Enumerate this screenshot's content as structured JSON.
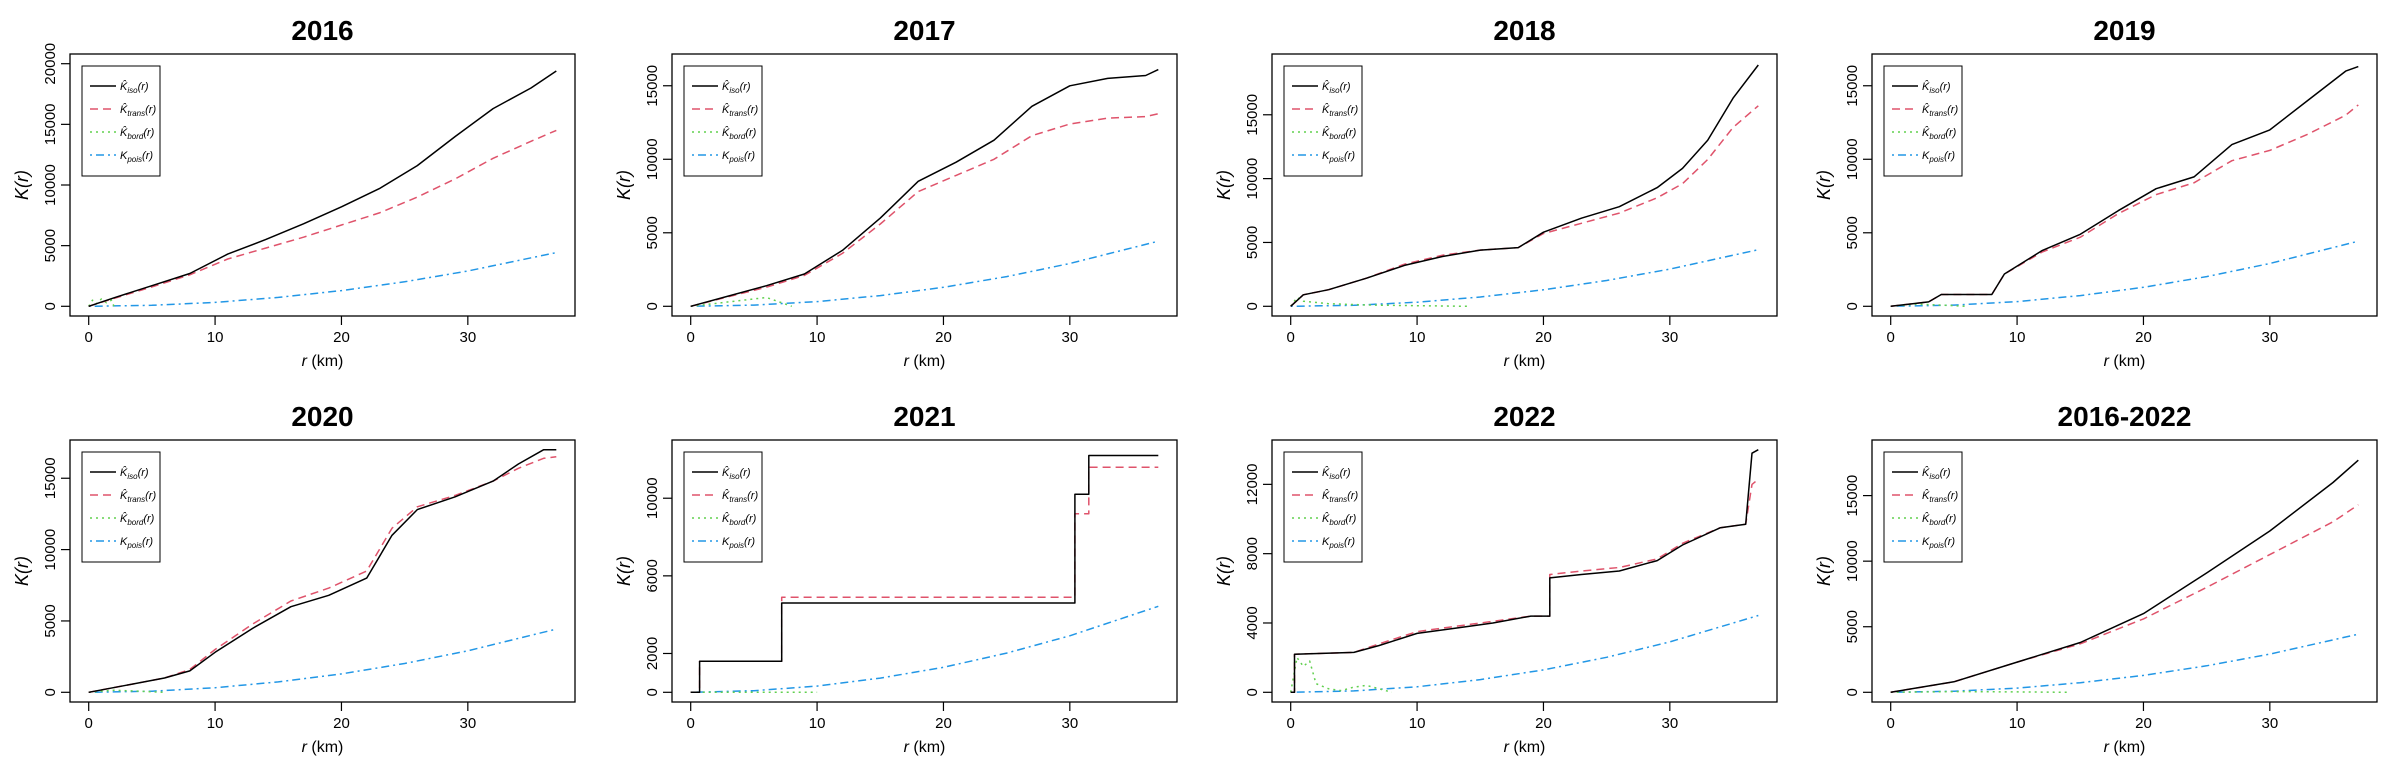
{
  "figure": {
    "legend_entries": [
      {
        "name": "K̂iso(r)",
        "base": "K̂",
        "sub": "iso",
        "color": "#000000",
        "dash": ""
      },
      {
        "name": "K̂trans(r)",
        "base": "K̂",
        "sub": "trans",
        "color": "#DF536B",
        "dash": "8,5"
      },
      {
        "name": "K̂bord(r)",
        "base": "K̂",
        "sub": "bord",
        "color": "#61D04F",
        "dash": "2,4"
      },
      {
        "name": "Kpois(r)",
        "base": "K",
        "sub": "pois",
        "color": "#2297E6",
        "dash": "2,4,8,4"
      }
    ]
  },
  "chart_data": [
    {
      "type": "line",
      "title": "2016",
      "xlabel": "r (km)",
      "ylabel": "K(r)",
      "xlim": [
        0,
        37
      ],
      "ylim": [
        0,
        20000
      ],
      "xticks": [
        0,
        10,
        20,
        30
      ],
      "yticks": [
        0,
        5000,
        10000,
        15000,
        20000
      ],
      "legend_position": "top-left",
      "series": [
        {
          "name": "K̂iso(r)",
          "x": [
            0,
            2,
            5,
            8,
            11,
            14,
            17,
            20,
            23,
            26,
            29,
            32,
            35,
            37
          ],
          "y": [
            0,
            700,
            1700,
            2700,
            4300,
            5500,
            6800,
            8200,
            9700,
            11600,
            14000,
            16300,
            18000,
            19400
          ]
        },
        {
          "name": "K̂trans(r)",
          "x": [
            0,
            2,
            5,
            8,
            11,
            14,
            17,
            20,
            23,
            26,
            29,
            32,
            35,
            37
          ],
          "y": [
            0,
            650,
            1600,
            2600,
            3900,
            4800,
            5700,
            6700,
            7700,
            9000,
            10500,
            12200,
            13600,
            14500
          ]
        },
        {
          "name": "K̂bord(r)",
          "x": [
            0,
            0.3,
            0.6,
            1,
            1.4,
            1.8,
            2
          ],
          "y": [
            0,
            500,
            200,
            600,
            300,
            500,
            0
          ]
        },
        {
          "name": "Kpois(r)",
          "x": [
            0,
            5,
            10,
            15,
            20,
            25,
            30,
            37
          ],
          "y": [
            0,
            80,
            320,
            730,
            1290,
            2020,
            2910,
            4430
          ]
        }
      ]
    },
    {
      "type": "line",
      "title": "2017",
      "xlabel": "r (km)",
      "ylabel": "K(r)",
      "xlim": [
        0,
        37
      ],
      "ylim": [
        0,
        16500
      ],
      "xticks": [
        0,
        10,
        20,
        30
      ],
      "yticks": [
        0,
        5000,
        10000,
        15000
      ],
      "legend_position": "top-left",
      "series": [
        {
          "name": "K̂iso(r)",
          "x": [
            0,
            3,
            6,
            9,
            12,
            15,
            18,
            21,
            24,
            27,
            30,
            33,
            36,
            37
          ],
          "y": [
            0,
            700,
            1400,
            2200,
            3800,
            6000,
            8500,
            9800,
            11300,
            13600,
            15000,
            15500,
            15700,
            16100
          ]
        },
        {
          "name": "K̂trans(r)",
          "x": [
            0,
            3,
            6,
            9,
            12,
            15,
            18,
            21,
            24,
            27,
            30,
            33,
            36,
            37
          ],
          "y": [
            0,
            650,
            1300,
            2100,
            3600,
            5600,
            7800,
            8900,
            10000,
            11600,
            12400,
            12800,
            12900,
            13100
          ]
        },
        {
          "name": "K̂bord(r)",
          "x": [
            0,
            2,
            4,
            6,
            7,
            8
          ],
          "y": [
            0,
            200,
            400,
            600,
            300,
            0
          ]
        },
        {
          "name": "Kpois(r)",
          "x": [
            0,
            5,
            10,
            15,
            20,
            25,
            30,
            37
          ],
          "y": [
            0,
            80,
            320,
            730,
            1290,
            2020,
            2910,
            4430
          ]
        }
      ]
    },
    {
      "type": "line",
      "title": "2018",
      "xlabel": "r (km)",
      "ylabel": "K(r)",
      "xlim": [
        0,
        37
      ],
      "ylim": [
        0,
        19000
      ],
      "xticks": [
        0,
        10,
        20,
        30
      ],
      "yticks": [
        0,
        5000,
        10000,
        15000
      ],
      "legend_position": "top-left",
      "series": [
        {
          "name": "K̂iso(r)",
          "x": [
            0,
            1,
            3,
            6,
            9,
            12,
            15,
            18,
            20,
            23,
            26,
            29,
            31,
            33,
            35,
            37
          ],
          "y": [
            0,
            900,
            1300,
            2200,
            3200,
            3900,
            4400,
            4600,
            5800,
            6900,
            7800,
            9300,
            10800,
            13000,
            16300,
            18900
          ]
        },
        {
          "name": "K̂trans(r)",
          "x": [
            0,
            1,
            3,
            6,
            9,
            12,
            15,
            18,
            20,
            23,
            26,
            29,
            31,
            33,
            35,
            37
          ],
          "y": [
            0,
            900,
            1300,
            2200,
            3300,
            4000,
            4400,
            4600,
            5700,
            6500,
            7300,
            8500,
            9600,
            11500,
            14000,
            15700
          ]
        },
        {
          "name": "K̂bord(r)",
          "x": [
            0,
            0.5,
            1,
            3,
            6,
            10,
            14
          ],
          "y": [
            0,
            700,
            400,
            200,
            100,
            50,
            0
          ]
        },
        {
          "name": "Kpois(r)",
          "x": [
            0,
            5,
            10,
            15,
            20,
            25,
            30,
            37
          ],
          "y": [
            0,
            80,
            320,
            730,
            1290,
            2020,
            2910,
            4430
          ]
        }
      ]
    },
    {
      "type": "line",
      "title": "2019",
      "xlabel": "r (km)",
      "ylabel": "K(r)",
      "xlim": [
        0,
        37
      ],
      "ylim": [
        0,
        16500
      ],
      "xticks": [
        0,
        10,
        20,
        30
      ],
      "yticks": [
        0,
        5000,
        10000,
        15000
      ],
      "legend_position": "top-left",
      "series": [
        {
          "name": "K̂iso(r)",
          "x": [
            0,
            3,
            4,
            8,
            9,
            12,
            15,
            18,
            21,
            24,
            27,
            30,
            33,
            36,
            37
          ],
          "y": [
            0,
            300,
            800,
            800,
            2200,
            3800,
            4900,
            6500,
            8000,
            8800,
            11000,
            12000,
            14000,
            16000,
            16300
          ]
        },
        {
          "name": "K̂trans(r)",
          "x": [
            0,
            3,
            4,
            8,
            9,
            12,
            15,
            18,
            21,
            24,
            27,
            30,
            33,
            36,
            37
          ],
          "y": [
            0,
            300,
            800,
            800,
            2200,
            3700,
            4700,
            6300,
            7600,
            8400,
            9900,
            10600,
            11700,
            13000,
            13700
          ]
        },
        {
          "name": "K̂bord(r)",
          "x": [
            0,
            2,
            4,
            6
          ],
          "y": [
            0,
            150,
            80,
            0
          ]
        },
        {
          "name": "Kpois(r)",
          "x": [
            0,
            5,
            10,
            15,
            20,
            25,
            30,
            37
          ],
          "y": [
            0,
            80,
            320,
            730,
            1290,
            2020,
            2910,
            4430
          ]
        }
      ]
    },
    {
      "type": "line",
      "title": "2020",
      "xlabel": "r (km)",
      "ylabel": "K(r)",
      "xlim": [
        0,
        37
      ],
      "ylim": [
        0,
        17000
      ],
      "xticks": [
        0,
        10,
        20,
        30
      ],
      "yticks": [
        0,
        5000,
        10000,
        15000
      ],
      "legend_position": "top-left",
      "series": [
        {
          "name": "K̂iso(r)",
          "x": [
            0,
            3,
            6,
            8,
            10,
            13,
            16,
            19,
            22,
            24,
            26,
            29,
            32,
            34,
            36,
            37
          ],
          "y": [
            0,
            500,
            1000,
            1500,
            2800,
            4500,
            6000,
            6800,
            8000,
            11000,
            12800,
            13700,
            14800,
            16000,
            17000,
            17000
          ]
        },
        {
          "name": "K̂trans(r)",
          "x": [
            0,
            3,
            6,
            8,
            10,
            13,
            16,
            19,
            22,
            24,
            26,
            29,
            32,
            34,
            36,
            37
          ],
          "y": [
            0,
            500,
            1000,
            1600,
            3000,
            4800,
            6400,
            7300,
            8500,
            11500,
            13000,
            13800,
            14800,
            15700,
            16400,
            16500
          ]
        },
        {
          "name": "K̂bord(r)",
          "x": [
            0,
            2,
            4,
            6
          ],
          "y": [
            0,
            150,
            80,
            0
          ]
        },
        {
          "name": "Kpois(r)",
          "x": [
            0,
            5,
            10,
            15,
            20,
            25,
            30,
            37
          ],
          "y": [
            0,
            80,
            320,
            730,
            1290,
            2020,
            2910,
            4430
          ]
        }
      ]
    },
    {
      "type": "line",
      "title": "2021",
      "xlabel": "r (km)",
      "ylabel": "K(r)",
      "xlim": [
        0,
        37
      ],
      "ylim": [
        0,
        12500
      ],
      "xticks": [
        0,
        10,
        20,
        30
      ],
      "yticks": [
        0,
        2000,
        6000,
        10000
      ],
      "legend_position": "top-left",
      "series": [
        {
          "name": "K̂iso(r)",
          "x": [
            0,
            0.7,
            0.7,
            7.2,
            7.2,
            30.4,
            30.4,
            31.5,
            31.5,
            37
          ],
          "y": [
            0,
            0,
            1600,
            1600,
            4600,
            4600,
            10200,
            10200,
            12200,
            12200
          ]
        },
        {
          "name": "K̂trans(r)",
          "x": [
            0,
            0.7,
            0.7,
            7.2,
            7.2,
            30.4,
            30.4,
            31.5,
            31.5,
            37
          ],
          "y": [
            0,
            0,
            1600,
            1600,
            4900,
            4900,
            9200,
            9200,
            11600,
            11600
          ]
        },
        {
          "name": "K̂bord(r)",
          "x": [
            0,
            5,
            10
          ],
          "y": [
            0,
            0,
            0
          ]
        },
        {
          "name": "Kpois(r)",
          "x": [
            0,
            5,
            10,
            15,
            20,
            25,
            30,
            37
          ],
          "y": [
            0,
            80,
            320,
            730,
            1290,
            2020,
            2910,
            4430
          ]
        }
      ]
    },
    {
      "type": "line",
      "title": "2022",
      "xlabel": "r (km)",
      "ylabel": "K(r)",
      "xlim": [
        0,
        37
      ],
      "ylim": [
        0,
        14000
      ],
      "xticks": [
        0,
        10,
        20,
        30
      ],
      "yticks": [
        0,
        4000,
        8000,
        12000
      ],
      "legend_position": "top-left",
      "series": [
        {
          "name": "K̂iso(r)",
          "x": [
            0,
            0.3,
            0.3,
            5,
            7,
            10,
            13,
            16,
            19,
            20.5,
            20.5,
            23,
            26,
            29,
            31,
            34,
            36,
            36.5,
            37
          ],
          "y": [
            0,
            0,
            2200,
            2300,
            2700,
            3400,
            3700,
            4000,
            4400,
            4400,
            6600,
            6800,
            7000,
            7600,
            8500,
            9500,
            9700,
            13800,
            14000
          ]
        },
        {
          "name": "K̂trans(r)",
          "x": [
            0,
            0.3,
            0.3,
            5,
            7,
            10,
            13,
            16,
            19,
            20.5,
            20.5,
            23,
            26,
            29,
            31,
            34,
            36,
            36.5,
            37
          ],
          "y": [
            0,
            0,
            2200,
            2300,
            2800,
            3500,
            3800,
            4100,
            4400,
            4400,
            6800,
            7000,
            7200,
            7700,
            8600,
            9500,
            9700,
            12000,
            12300
          ]
        },
        {
          "name": "K̂bord(r)",
          "x": [
            0,
            0.5,
            1,
            1.5,
            2,
            3,
            4,
            5,
            6,
            7,
            8
          ],
          "y": [
            0,
            2000,
            1500,
            1800,
            500,
            200,
            100,
            300,
            400,
            200,
            0
          ]
        },
        {
          "name": "Kpois(r)",
          "x": [
            0,
            5,
            10,
            15,
            20,
            25,
            30,
            37
          ],
          "y": [
            0,
            80,
            320,
            730,
            1290,
            2020,
            2910,
            4430
          ]
        }
      ]
    },
    {
      "type": "line",
      "title": "2016-2022",
      "xlabel": "r (km)",
      "ylabel": "K(r)",
      "xlim": [
        0,
        37
      ],
      "ylim": [
        0,
        18500
      ],
      "xticks": [
        0,
        10,
        20,
        30
      ],
      "yticks": [
        0,
        5000,
        10000,
        15000
      ],
      "legend_position": "top-left",
      "series": [
        {
          "name": "K̂iso(r)",
          "x": [
            0,
            5,
            10,
            15,
            20,
            25,
            30,
            35,
            37
          ],
          "y": [
            0,
            800,
            2300,
            3800,
            6000,
            9100,
            12300,
            16000,
            17700
          ]
        },
        {
          "name": "K̂trans(r)",
          "x": [
            0,
            5,
            10,
            15,
            20,
            25,
            30,
            35,
            37
          ],
          "y": [
            0,
            800,
            2300,
            3700,
            5600,
            8000,
            10500,
            13000,
            14300
          ]
        },
        {
          "name": "K̂bord(r)",
          "x": [
            0,
            5,
            10,
            14
          ],
          "y": [
            0,
            50,
            30,
            0
          ]
        },
        {
          "name": "Kpois(r)",
          "x": [
            0,
            5,
            10,
            15,
            20,
            25,
            30,
            37
          ],
          "y": [
            0,
            80,
            320,
            730,
            1290,
            2020,
            2910,
            4430
          ]
        }
      ]
    }
  ]
}
